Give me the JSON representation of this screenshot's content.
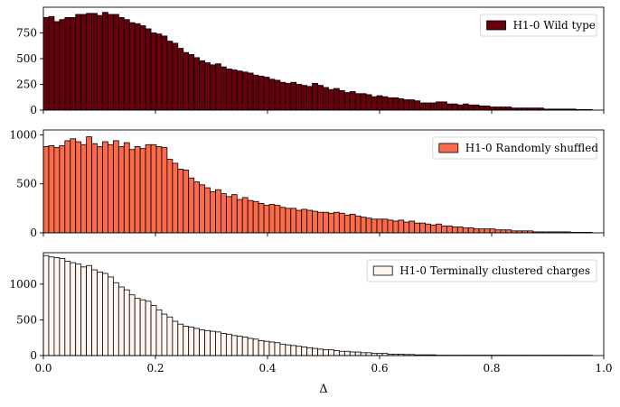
{
  "chart_data": [
    {
      "type": "bar",
      "bin_width": 0.0096,
      "x_start": 0.0,
      "xlim": [
        0.0,
        1.0
      ],
      "ylim": [
        0,
        1000
      ],
      "yticks": [
        0,
        250,
        500,
        750
      ],
      "xticks": [
        0.0,
        0.2,
        0.4,
        0.6,
        0.8,
        1.0
      ],
      "show_xticklabels": false,
      "legend_placement": "top-right",
      "series": [
        {
          "name": "H1-0 Wild type",
          "color": "#67000d",
          "values": [
            900,
            910,
            860,
            880,
            900,
            900,
            930,
            930,
            940,
            940,
            920,
            950,
            930,
            930,
            900,
            880,
            850,
            840,
            820,
            790,
            750,
            740,
            720,
            670,
            650,
            600,
            560,
            540,
            510,
            480,
            460,
            440,
            450,
            420,
            400,
            390,
            380,
            370,
            360,
            340,
            330,
            320,
            300,
            290,
            270,
            260,
            270,
            250,
            240,
            230,
            260,
            240,
            220,
            200,
            210,
            190,
            170,
            180,
            160,
            160,
            150,
            130,
            140,
            130,
            120,
            120,
            110,
            100,
            100,
            90,
            70,
            70,
            70,
            80,
            80,
            60,
            60,
            50,
            60,
            50,
            50,
            40,
            40,
            30,
            30,
            30,
            30,
            20,
            20,
            20,
            20,
            20,
            20,
            10,
            10,
            10,
            10,
            10,
            10,
            5,
            5,
            5
          ]
        }
      ]
    },
    {
      "type": "bar",
      "bin_width": 0.0096,
      "x_start": 0.0,
      "xlim": [
        0.0,
        1.0
      ],
      "ylim": [
        0,
        1050
      ],
      "yticks": [
        0,
        500,
        1000
      ],
      "xticks": [
        0.0,
        0.2,
        0.4,
        0.6,
        0.8,
        1.0
      ],
      "show_xticklabels": false,
      "legend_placement": "top-right",
      "series": [
        {
          "name": "H1-0 Randomly shuffled",
          "color": "#fb6a4a",
          "values": [
            880,
            890,
            870,
            890,
            940,
            960,
            930,
            900,
            980,
            910,
            880,
            930,
            900,
            940,
            880,
            920,
            850,
            880,
            860,
            900,
            900,
            880,
            870,
            750,
            710,
            650,
            640,
            560,
            520,
            490,
            460,
            420,
            440,
            400,
            370,
            390,
            340,
            360,
            330,
            320,
            300,
            280,
            290,
            280,
            260,
            250,
            250,
            230,
            240,
            230,
            220,
            210,
            210,
            200,
            210,
            200,
            180,
            190,
            170,
            160,
            150,
            140,
            140,
            140,
            130,
            120,
            130,
            110,
            120,
            100,
            100,
            90,
            80,
            90,
            70,
            70,
            60,
            60,
            50,
            50,
            40,
            40,
            40,
            40,
            30,
            30,
            30,
            20,
            20,
            20,
            20,
            10,
            10,
            10,
            10,
            10,
            10,
            10,
            5,
            5,
            5,
            5
          ]
        }
      ]
    },
    {
      "type": "bar",
      "bin_width": 0.0096,
      "x_start": 0.0,
      "xlim": [
        0.0,
        1.0
      ],
      "ylim": [
        0,
        1440
      ],
      "yticks": [
        0,
        500,
        1000
      ],
      "xticks": [
        0.0,
        0.2,
        0.4,
        0.6,
        0.8,
        1.0
      ],
      "xlabel": "Δ",
      "show_xticklabels": true,
      "legend_placement": "top-right",
      "series": [
        {
          "name": "H1-0 Terminally clustered charges",
          "color": "#fff5f0",
          "values": [
            1400,
            1380,
            1370,
            1360,
            1320,
            1300,
            1280,
            1240,
            1260,
            1200,
            1170,
            1150,
            1100,
            1020,
            960,
            920,
            850,
            800,
            780,
            760,
            700,
            640,
            580,
            540,
            480,
            440,
            410,
            400,
            380,
            360,
            350,
            340,
            330,
            310,
            300,
            280,
            270,
            260,
            240,
            230,
            210,
            200,
            190,
            180,
            160,
            150,
            140,
            130,
            120,
            110,
            100,
            90,
            80,
            80,
            70,
            60,
            60,
            50,
            50,
            40,
            40,
            30,
            30,
            30,
            20,
            20,
            20,
            15,
            15,
            10,
            10,
            10,
            10,
            5,
            5,
            5,
            5,
            5,
            5,
            5,
            5,
            5,
            5,
            5,
            5,
            5,
            5,
            5,
            5,
            5,
            5,
            5,
            5,
            5,
            5,
            5,
            5,
            5,
            5,
            5,
            5,
            5
          ]
        }
      ]
    }
  ]
}
